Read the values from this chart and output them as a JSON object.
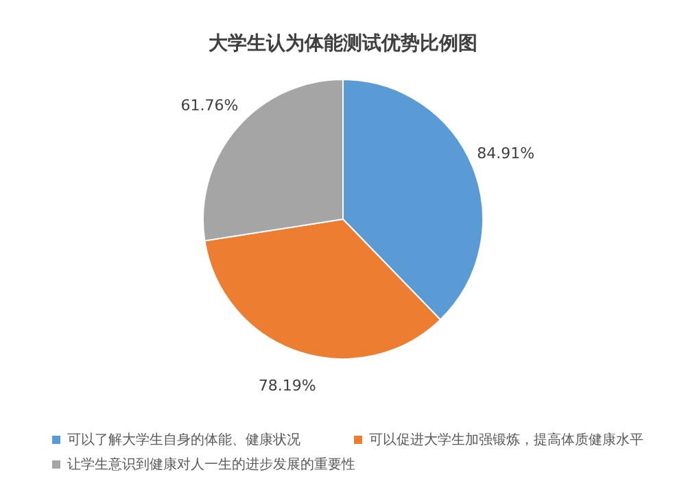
{
  "chart_data": {
    "type": "pie",
    "title": "大学生认为体能测试优势比例图",
    "categories": [
      "可以了解大学生自身的体能、健康状况",
      "可以促进大学生加强锻炼，提高体质健康水平",
      "让学生意识到健康对人一生的进步发展的重要性"
    ],
    "values": [
      84.91,
      78.19,
      61.76
    ],
    "colors": [
      "#5b9bd5",
      "#ed7d31",
      "#a5a5a5"
    ],
    "value_labels": [
      "84.91%",
      "78.19%",
      "61.76%"
    ],
    "legend": "bottom"
  }
}
